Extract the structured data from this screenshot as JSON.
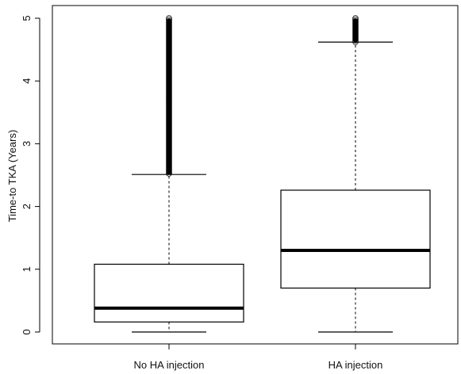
{
  "chart_data": {
    "type": "boxplot",
    "ylabel": "Time-to TKA (Years)",
    "ylim": [
      0,
      5
    ],
    "yticks": [
      "0",
      "1",
      "2",
      "3",
      "4",
      "5"
    ],
    "categories": [
      "No HA injection",
      "HA injection"
    ],
    "boxes": [
      {
        "label": "No HA injection",
        "whisker_low": 0.0,
        "q1": 0.16,
        "median": 0.38,
        "q3": 1.08,
        "whisker_high": 2.51,
        "outliers_from": 2.51,
        "outliers_to": 5.0
      },
      {
        "label": "HA injection",
        "whisker_low": 0.0,
        "q1": 0.7,
        "median": 1.3,
        "q3": 2.26,
        "whisker_high": 4.62,
        "outliers_from": 4.62,
        "outliers_to": 5.0
      }
    ],
    "grid": false,
    "legend": "none"
  }
}
